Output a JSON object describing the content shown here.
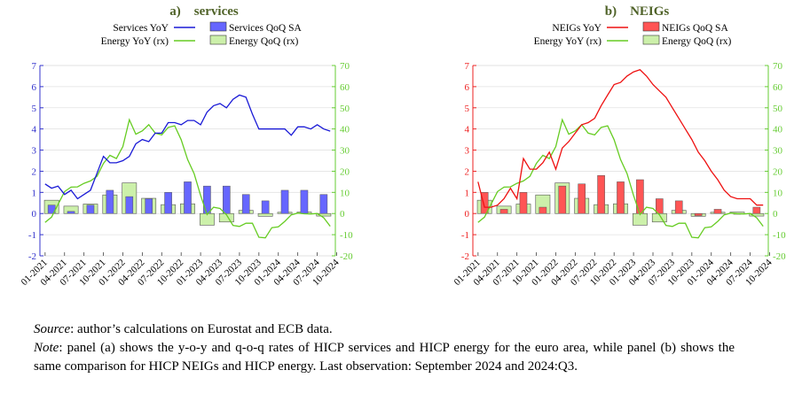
{
  "chart_data": [
    {
      "type": "bar+line",
      "panel_letter": "a)",
      "title": "services",
      "title_color": "#4f6228",
      "x_tick_labels": [
        "01-2021",
        "04-2021",
        "07-2021",
        "10-2021",
        "01-2022",
        "04-2022",
        "07-2022",
        "10-2022",
        "01-2023",
        "04-2023",
        "07-2023",
        "10-2023",
        "01-2024",
        "04-2024",
        "07-2024",
        "10-2024"
      ],
      "ylim_left": [
        -2,
        7
      ],
      "yticks_left": [
        "-2",
        "-1",
        "0",
        "1",
        "2",
        "3",
        "4",
        "5",
        "6",
        "7"
      ],
      "ylim_right": [
        -20,
        70
      ],
      "yticks_right": [
        "-20",
        "-10",
        "0",
        "10",
        "20",
        "30",
        "40",
        "50",
        "60",
        "70"
      ],
      "left_axis_color": "#3333cc",
      "right_axis_color": "#66cc33",
      "legend": [
        "Services YoY",
        "Services QoQ SA",
        "Energy YoY (rx)",
        "Energy QoQ (rx)"
      ],
      "line_left": {
        "name": "Services YoY",
        "color": "#1a1ad6",
        "values": [
          1.4,
          1.2,
          1.3,
          0.9,
          1.1,
          0.7,
          0.9,
          1.1,
          1.9,
          2.7,
          2.4,
          2.4,
          2.5,
          2.7,
          3.3,
          3.5,
          3.4,
          3.8,
          3.8,
          4.3,
          4.3,
          4.2,
          4.4,
          4.4,
          4.2,
          4.8,
          5.1,
          5.2,
          5.0,
          5.4,
          5.6,
          5.5,
          4.7,
          4.0,
          4.0,
          4.0,
          4.0,
          4.0,
          3.7,
          4.1,
          4.1,
          4.0,
          4.2,
          4.0,
          3.9
        ]
      },
      "bars_left": {
        "name": "Services QoQ SA",
        "color": "#6666ff",
        "values": [
          0.4,
          0.1,
          0.4,
          1.1,
          0.8,
          0.7,
          1.0,
          1.5,
          1.3,
          1.3,
          0.9,
          0.6,
          1.1,
          1.1,
          0.9
        ]
      },
      "line_right": {
        "name": "Energy YoY (rx)",
        "color": "#66cc22",
        "values": [
          -4.2,
          -1.7,
          4.3,
          10.4,
          12.5,
          12.6,
          14.3,
          15.4,
          17.6,
          23.7,
          27.5,
          26.0,
          31.7,
          44.4,
          37.5,
          39.1,
          42.0,
          38.0,
          37.2,
          40.7,
          41.5,
          34.9,
          25.5,
          18.9,
          8.6,
          -0.5,
          3.0,
          2.4,
          -0.6,
          -5.6,
          -6.1,
          -4.6,
          -4.6,
          -11.2,
          -11.5,
          -6.7,
          -6.3,
          -3.7,
          -0.6,
          0.2,
          -0.1,
          -0.2,
          0.0,
          -2.0,
          -6.0
        ]
      },
      "bars_right": {
        "name": "Energy QoQ (rx)",
        "color": "#ccf0aa",
        "values": [
          6.3,
          3.5,
          4.5,
          8.8,
          14.5,
          7.2,
          4.2,
          4.6,
          -5.5,
          -4.0,
          1.5,
          -1.3,
          0.6,
          0.7,
          -1.2
        ]
      }
    },
    {
      "type": "bar+line",
      "panel_letter": "b)",
      "title": "NEIGs",
      "title_color": "#4f6228",
      "x_tick_labels": [
        "01-2021",
        "04-2021",
        "07-2021",
        "10-2021",
        "01-2022",
        "04-2022",
        "07-2022",
        "10-2022",
        "01-2023",
        "04-2023",
        "07-2023",
        "10-2023",
        "01-2024",
        "04-2024",
        "07-2024",
        "10-2024"
      ],
      "ylim_left": [
        -2,
        7
      ],
      "yticks_left": [
        "-2",
        "-1",
        "0",
        "1",
        "2",
        "3",
        "4",
        "5",
        "6",
        "7"
      ],
      "ylim_right": [
        -20,
        70
      ],
      "yticks_right": [
        "-20",
        "-10",
        "0",
        "10",
        "20",
        "30",
        "40",
        "50",
        "60",
        "70"
      ],
      "left_axis_color": "#ee2222",
      "right_axis_color": "#66cc33",
      "legend": [
        "NEIGs YoY",
        "NEIGs QoQ SA",
        "Energy YoY (rx)",
        "Energy QoQ (rx)"
      ],
      "line_left": {
        "name": "NEIGs YoY",
        "color": "#ee1111",
        "values": [
          1.5,
          0.3,
          0.3,
          0.4,
          0.7,
          1.2,
          0.7,
          2.6,
          2.1,
          2.1,
          2.4,
          2.9,
          2.1,
          3.1,
          3.4,
          3.8,
          4.2,
          4.3,
          4.5,
          5.1,
          5.6,
          6.1,
          6.2,
          6.5,
          6.7,
          6.8,
          6.5,
          6.1,
          5.8,
          5.5,
          5.0,
          4.5,
          4.0,
          3.5,
          2.9,
          2.5,
          2.0,
          1.6,
          1.1,
          0.8,
          0.7,
          0.7,
          0.7,
          0.4,
          0.4
        ]
      },
      "bars_left": {
        "name": "NEIGs QoQ SA",
        "color": "#ff5555",
        "values": [
          1.0,
          0.2,
          1.0,
          0.3,
          1.3,
          1.4,
          1.8,
          1.5,
          1.6,
          0.7,
          0.6,
          -0.1,
          0.2,
          0.0,
          0.3
        ]
      },
      "line_right": {
        "name": "Energy YoY (rx)",
        "color": "#66cc22",
        "values": [
          -4.2,
          -1.7,
          4.3,
          10.4,
          12.5,
          12.6,
          14.3,
          15.4,
          17.6,
          23.7,
          27.5,
          26.0,
          31.7,
          44.4,
          37.5,
          39.1,
          42.0,
          38.0,
          37.2,
          40.7,
          41.5,
          34.9,
          25.5,
          18.9,
          8.6,
          -0.5,
          3.0,
          2.4,
          -0.6,
          -5.6,
          -6.1,
          -4.6,
          -4.6,
          -11.2,
          -11.5,
          -6.7,
          -6.3,
          -3.7,
          -0.6,
          0.2,
          -0.1,
          -0.2,
          0.0,
          -2.0,
          -6.0
        ]
      },
      "bars_right": {
        "name": "Energy QoQ (rx)",
        "color": "#ccf0aa",
        "values": [
          6.3,
          3.5,
          4.5,
          8.8,
          14.5,
          7.2,
          4.2,
          4.6,
          -5.5,
          -4.0,
          1.5,
          -1.3,
          0.6,
          0.7,
          -1.2
        ]
      }
    }
  ],
  "notes": {
    "source_label": "Source",
    "source_text": ": author’s calculations on Eurostat and ECB data.",
    "note_label": "Note",
    "note_text": ": panel (a) shows the y-o-y and q-o-q rates of HICP services and HICP energy for the euro area, while panel (b) shows the same comparison for HICP NEIGs and HICP energy. Last observation: September 2024 and 2024:Q3."
  }
}
